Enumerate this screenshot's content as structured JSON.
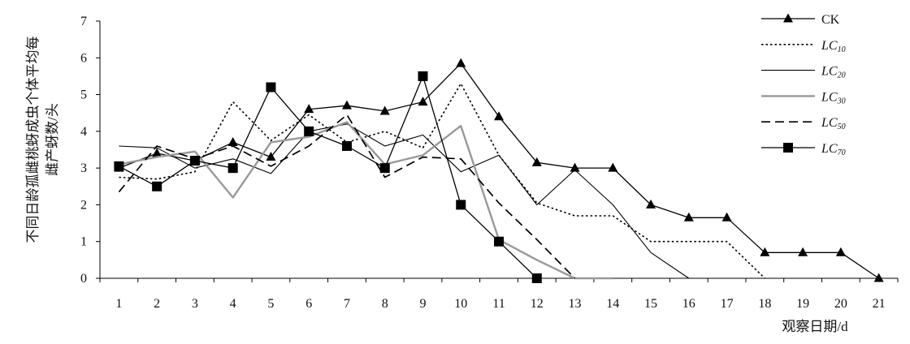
{
  "chart_data": {
    "type": "line",
    "xlabel": "观察日期/d",
    "ylabel": "不同日龄孤雌桃蚜成虫个体平均每雌产蚜数/头",
    "ylim": [
      0,
      7
    ],
    "yticks": [
      0,
      1,
      2,
      3,
      4,
      5,
      6,
      7
    ],
    "x": [
      1,
      2,
      3,
      4,
      5,
      6,
      7,
      8,
      9,
      10,
      11,
      12,
      13,
      14,
      15,
      16,
      17,
      18,
      19,
      20,
      21
    ],
    "grid": false,
    "legend_position": "top-right",
    "series": [
      {
        "name": "CK",
        "sub": "",
        "style": "solid",
        "color": "#000000",
        "width": 1.3,
        "marker": "triangle",
        "x": [
          1,
          2,
          3,
          4,
          5,
          6,
          7,
          8,
          9,
          10,
          11,
          12,
          13,
          14,
          15,
          16,
          17,
          18,
          19,
          20,
          21
        ],
        "y": [
          3.0,
          3.4,
          3.2,
          3.7,
          3.3,
          4.6,
          4.7,
          4.55,
          4.8,
          5.85,
          4.4,
          3.15,
          3.0,
          3.0,
          2.0,
          1.65,
          1.65,
          0.7,
          0.7,
          0.7,
          0.0
        ]
      },
      {
        "name": "LC",
        "sub": "10",
        "style": "dotted",
        "color": "#000000",
        "width": 1.6,
        "marker": "none",
        "x": [
          1,
          2,
          3,
          4,
          5,
          6,
          7,
          8,
          9,
          10,
          11,
          12,
          13,
          14,
          15,
          16,
          17,
          18
        ],
        "y": [
          2.75,
          2.7,
          2.9,
          4.8,
          3.75,
          4.45,
          3.7,
          4.0,
          3.55,
          5.3,
          3.35,
          2.05,
          1.7,
          1.7,
          1.0,
          1.0,
          1.0,
          0.0
        ]
      },
      {
        "name": "LC",
        "sub": "20",
        "style": "solid",
        "color": "#000000",
        "width": 1.1,
        "marker": "none",
        "x": [
          1,
          2,
          3,
          4,
          5,
          6,
          7,
          8,
          9,
          10,
          11,
          12,
          13,
          14,
          15,
          16
        ],
        "y": [
          3.6,
          3.55,
          3.0,
          3.25,
          2.85,
          4.0,
          4.2,
          3.6,
          3.9,
          2.9,
          3.35,
          2.0,
          2.95,
          2.0,
          0.7,
          0.0
        ]
      },
      {
        "name": "LC",
        "sub": "30",
        "style": "solid",
        "color": "#999999",
        "width": 2.4,
        "marker": "none",
        "x": [
          1,
          2,
          3,
          4,
          5,
          6,
          7,
          8,
          9,
          10,
          11,
          12,
          13,
          14
        ],
        "y": [
          3.1,
          3.3,
          3.45,
          2.2,
          3.7,
          3.85,
          4.25,
          3.1,
          3.35,
          4.15,
          1.05,
          0.5,
          0.0,
          0.0
        ]
      },
      {
        "name": "LC",
        "sub": "50",
        "style": "dashed",
        "color": "#000000",
        "width": 1.7,
        "marker": "none",
        "x": [
          1,
          2,
          3,
          4,
          5,
          6,
          7,
          8,
          9,
          10,
          11,
          12,
          13
        ],
        "y": [
          2.35,
          3.6,
          3.25,
          3.6,
          3.05,
          3.6,
          4.45,
          2.75,
          3.3,
          3.25,
          2.05,
          1.05,
          0.0
        ]
      },
      {
        "name": "LC",
        "sub": "70",
        "style": "solid",
        "color": "#000000",
        "width": 1.3,
        "marker": "square",
        "x": [
          1,
          2,
          3,
          4,
          5,
          6,
          7,
          8,
          9,
          10,
          11,
          12
        ],
        "y": [
          3.05,
          2.5,
          3.2,
          3.0,
          5.2,
          4.0,
          3.6,
          3.0,
          5.5,
          2.0,
          1.0,
          0.0
        ]
      }
    ]
  }
}
